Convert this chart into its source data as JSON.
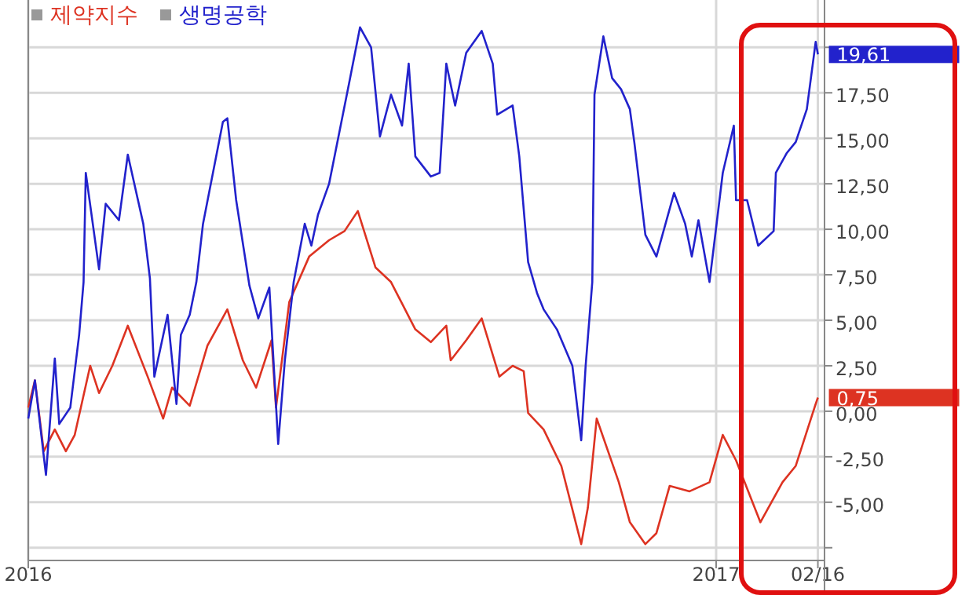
{
  "chart_data": {
    "type": "line",
    "xlim": [
      "2016-02-25",
      "2017-02-19"
    ],
    "xticks": [
      {
        "value": "2016-02-25",
        "label": "2016"
      },
      {
        "value": "2017-01-01",
        "label": "2017"
      },
      {
        "value": "2017-02-16",
        "label": "02/16"
      }
    ],
    "ylim": [
      -8.2,
      22.6
    ],
    "yticks": [
      {
        "value": 20,
        "label": null
      },
      {
        "value": 17.5,
        "label": "17,50"
      },
      {
        "value": 15,
        "label": "15,00"
      },
      {
        "value": 12.5,
        "label": "12,50"
      },
      {
        "value": 10,
        "label": "10,00"
      },
      {
        "value": 7.5,
        "label": "7,50"
      },
      {
        "value": 5,
        "label": "5,00"
      },
      {
        "value": 2.5,
        "label": "2,50"
      },
      {
        "value": 0,
        "label": "0,00"
      },
      {
        "value": -2.5,
        "label": "-2,50"
      },
      {
        "value": -5,
        "label": "-5,00"
      },
      {
        "value": -7.5,
        "label": null
      }
    ],
    "grid": true,
    "legend": "top left",
    "line_style": "solid",
    "marker": "none",
    "annotations": [
      {
        "text": "19,61",
        "x": "2017-02-16",
        "y": 19.61
      },
      {
        "text": "0,75",
        "x": "2017-02-16",
        "y": 0.75
      }
    ],
    "series": [
      {
        "name": "제약지수",
        "color": "#dd3322",
        "x": [
          "2016-02-25",
          "2016-02-28",
          "2016-03-03",
          "2016-03-08",
          "2016-03-13",
          "2016-03-17",
          "2016-03-24",
          "2016-03-28",
          "2016-04-03",
          "2016-04-10",
          "2016-04-19",
          "2016-04-26",
          "2016-04-30",
          "2016-05-08",
          "2016-05-16",
          "2016-05-25",
          "2016-06-01",
          "2016-06-07",
          "2016-06-14",
          "2016-06-16",
          "2016-06-22",
          "2016-07-01",
          "2016-07-10",
          "2016-07-17",
          "2016-07-23",
          "2016-07-31",
          "2016-08-07",
          "2016-08-18",
          "2016-08-25",
          "2016-09-01",
          "2016-09-03",
          "2016-09-10",
          "2016-09-17",
          "2016-09-25",
          "2016-10-01",
          "2016-10-06",
          "2016-10-08",
          "2016-10-15",
          "2016-10-23",
          "2016-11-01",
          "2016-11-04",
          "2016-11-08",
          "2016-11-18",
          "2016-11-23",
          "2016-11-30",
          "2016-12-05",
          "2016-12-11",
          "2016-12-20",
          "2016-12-29",
          "2017-01-04",
          "2017-01-10",
          "2017-01-21",
          "2017-01-31",
          "2017-02-06",
          "2017-02-15",
          "2017-02-16"
        ],
        "values": [
          0.2,
          1.7,
          -2.2,
          -1.0,
          -2.2,
          -1.3,
          2.5,
          1.0,
          2.5,
          4.7,
          1.9,
          -0.4,
          1.3,
          0.3,
          3.6,
          5.6,
          2.8,
          1.3,
          3.9,
          0.2,
          6.0,
          8.5,
          9.4,
          9.9,
          11.0,
          7.9,
          7.1,
          4.5,
          3.8,
          4.7,
          2.8,
          3.9,
          5.1,
          1.9,
          2.5,
          2.2,
          -0.1,
          -1.0,
          -3.0,
          -7.3,
          -5.3,
          -0.4,
          -3.9,
          -6.1,
          -7.3,
          -6.7,
          -4.1,
          -4.4,
          -3.9,
          -1.3,
          -2.7,
          -6.1,
          -3.9,
          -3.0,
          0.4,
          0.75
        ]
      },
      {
        "name": "생명공학",
        "color": "#2222cc",
        "x": [
          "2016-02-25",
          "2016-02-28",
          "2016-03-04",
          "2016-03-08",
          "2016-03-10",
          "2016-03-15",
          "2016-03-19",
          "2016-03-21",
          "2016-03-22",
          "2016-03-28",
          "2016-03-31",
          "2016-04-06",
          "2016-04-10",
          "2016-04-17",
          "2016-04-20",
          "2016-04-22",
          "2016-04-28",
          "2016-05-02",
          "2016-05-04",
          "2016-05-08",
          "2016-05-11",
          "2016-05-14",
          "2016-05-23",
          "2016-05-25",
          "2016-05-29",
          "2016-06-04",
          "2016-06-08",
          "2016-06-13",
          "2016-06-17",
          "2016-06-20",
          "2016-06-24",
          "2016-06-29",
          "2016-07-02",
          "2016-07-05",
          "2016-07-10",
          "2016-07-19",
          "2016-07-24",
          "2016-07-29",
          "2016-08-02",
          "2016-08-07",
          "2016-08-12",
          "2016-08-15",
          "2016-08-18",
          "2016-08-25",
          "2016-08-29",
          "2016-09-01",
          "2016-09-05",
          "2016-09-10",
          "2016-09-17",
          "2016-09-22",
          "2016-09-24",
          "2016-10-01",
          "2016-10-04",
          "2016-10-08",
          "2016-10-12",
          "2016-10-15",
          "2016-10-21",
          "2016-10-28",
          "2016-11-01",
          "2016-11-03",
          "2016-11-06",
          "2016-11-07",
          "2016-11-11",
          "2016-11-15",
          "2016-11-19",
          "2016-11-23",
          "2016-11-25",
          "2016-11-30",
          "2016-12-05",
          "2016-12-13",
          "2016-12-18",
          "2016-12-21",
          "2016-12-24",
          "2016-12-29",
          "2017-01-04",
          "2017-01-09",
          "2017-01-10",
          "2017-01-15",
          "2017-01-20",
          "2017-01-27",
          "2017-01-28",
          "2017-02-02",
          "2017-02-06",
          "2017-02-11",
          "2017-02-15",
          "2017-02-16"
        ],
        "values": [
          -0.4,
          1.7,
          -3.5,
          2.9,
          -0.7,
          0.2,
          4.2,
          7.1,
          13.1,
          7.8,
          11.4,
          10.5,
          14.1,
          10.3,
          7.3,
          1.9,
          5.3,
          0.4,
          4.2,
          5.3,
          7.1,
          10.3,
          15.9,
          16.1,
          11.6,
          6.9,
          5.1,
          6.8,
          -1.8,
          2.8,
          7.1,
          10.3,
          9.1,
          10.8,
          12.5,
          18.0,
          21.1,
          20.0,
          15.1,
          17.4,
          15.7,
          19.1,
          14.0,
          12.9,
          13.1,
          19.1,
          16.8,
          19.7,
          20.9,
          19.1,
          16.3,
          16.8,
          14.0,
          8.2,
          6.5,
          5.6,
          4.5,
          2.5,
          -1.6,
          2.5,
          7.1,
          17.4,
          20.6,
          18.3,
          17.7,
          16.6,
          14.8,
          9.7,
          8.5,
          12.0,
          10.3,
          8.5,
          10.5,
          7.1,
          13.1,
          15.7,
          11.6,
          11.6,
          9.1,
          9.9,
          13.1,
          14.2,
          14.8,
          16.6,
          20.3,
          19.61
        ]
      }
    ]
  }
}
